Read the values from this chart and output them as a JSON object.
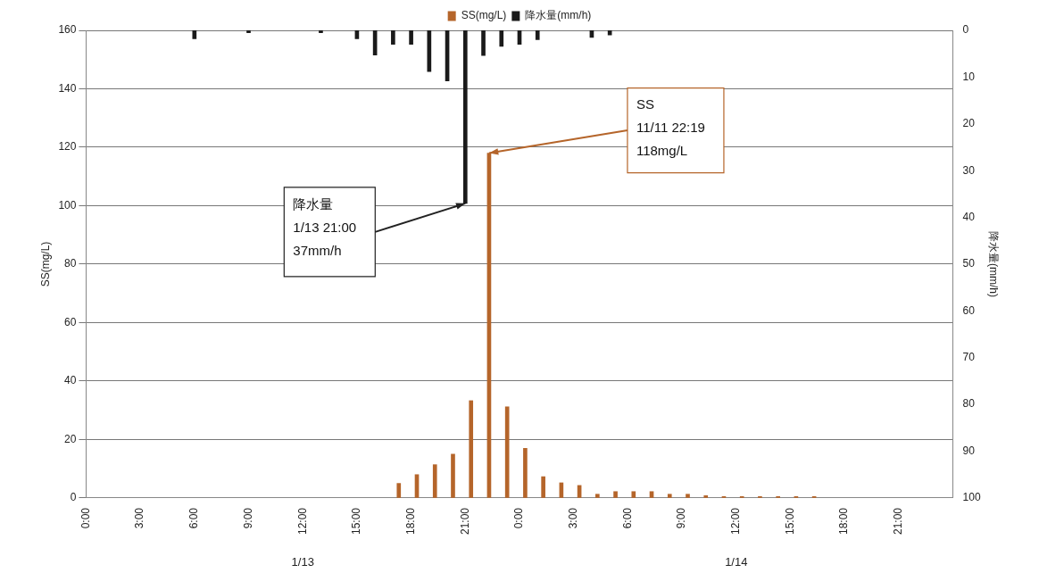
{
  "chart_data": {
    "type": "bar",
    "ylabel": "SS(mg/L)",
    "y2label": "降水量(mm/h)",
    "xlim": [
      "--01-13T00:00",
      "--01-15T00:00"
    ],
    "xticks": [
      {
        "value": "--01-13T00:00",
        "label": "0:00"
      },
      {
        "value": "--01-13T03:00",
        "label": "3:00"
      },
      {
        "value": "--01-13T06:00",
        "label": "6:00"
      },
      {
        "value": "--01-13T09:00",
        "label": "9:00"
      },
      {
        "value": "--01-13T12:00",
        "label": "12:00"
      },
      {
        "value": "--01-13T15:00",
        "label": "15:00"
      },
      {
        "value": "--01-13T18:00",
        "label": "18:00"
      },
      {
        "value": "--01-13T21:00",
        "label": "21:00"
      },
      {
        "value": "--01-14T00:00",
        "label": "0:00"
      },
      {
        "value": "--01-14T03:00",
        "label": "3:00"
      },
      {
        "value": "--01-14T06:00",
        "label": "6:00"
      },
      {
        "value": "--01-14T09:00",
        "label": "9:00"
      },
      {
        "value": "--01-14T12:00",
        "label": "12:00"
      },
      {
        "value": "--01-14T15:00",
        "label": "15:00"
      },
      {
        "value": "--01-14T18:00",
        "label": "18:00"
      },
      {
        "value": "--01-14T21:00",
        "label": "21:00"
      }
    ],
    "ylim": [
      0,
      160
    ],
    "yticks": [
      0,
      20,
      40,
      60,
      80,
      100,
      120,
      140,
      160
    ],
    "y2lim": [
      100,
      0
    ],
    "y2ticks": [
      0,
      10,
      20,
      30,
      40,
      50,
      60,
      70,
      80,
      90,
      100
    ],
    "grid": "y",
    "legend": "top",
    "series": [
      {
        "name": "SS(mg/L)",
        "axis": "y",
        "color": "#b5652a",
        "x": [
          "--01-13T17:19",
          "--01-13T18:19",
          "--01-13T19:19",
          "--01-13T20:19",
          "--01-13T21:19",
          "--01-13T22:19",
          "--01-13T23:19",
          "--01-14T00:19",
          "--01-14T01:19",
          "--01-14T02:19",
          "--01-14T03:19",
          "--01-14T04:19",
          "--01-14T05:19",
          "--01-14T06:19",
          "--01-14T07:19",
          "--01-14T08:19",
          "--01-14T09:19",
          "--01-14T10:19",
          "--01-14T11:19",
          "--01-14T12:19",
          "--01-14T13:19",
          "--01-14T14:19",
          "--01-14T15:19",
          "--01-14T16:19"
        ],
        "values": [
          5,
          8,
          11.4,
          15,
          33.3,
          118,
          31.2,
          17,
          7.3,
          5.2,
          4.3,
          1.3,
          2.2,
          2.2,
          2.2,
          1.3,
          1.3,
          0.8,
          0.5,
          0.5,
          0.5,
          0.5,
          0.5,
          0.5
        ]
      },
      {
        "name": "降水量(mm/h)",
        "axis": "y2",
        "color": "#1a1a1a",
        "x": [
          "--01-13T06:00",
          "--01-13T09:00",
          "--01-13T13:00",
          "--01-13T15:00",
          "--01-13T16:00",
          "--01-13T17:00",
          "--01-13T18:00",
          "--01-13T19:00",
          "--01-13T20:00",
          "--01-13T21:00",
          "--01-13T22:00",
          "--01-13T23:00",
          "--01-14T00:00",
          "--01-14T01:00",
          "--01-14T04:00",
          "--01-14T05:00"
        ],
        "values": [
          1.8,
          0.5,
          0.5,
          1.8,
          5.3,
          3,
          3,
          8.8,
          10.8,
          37,
          5.4,
          3.4,
          3,
          2,
          1.5,
          1
        ]
      }
    ],
    "annotations": [
      "降水量\n1/13 21:00\n37mm/h",
      {
        "text": "SS\n11/11 22:19\n118mg/L",
        "x": "--01-13T22:19",
        "y": 118
      },
      "1/13",
      "1/14"
    ]
  }
}
